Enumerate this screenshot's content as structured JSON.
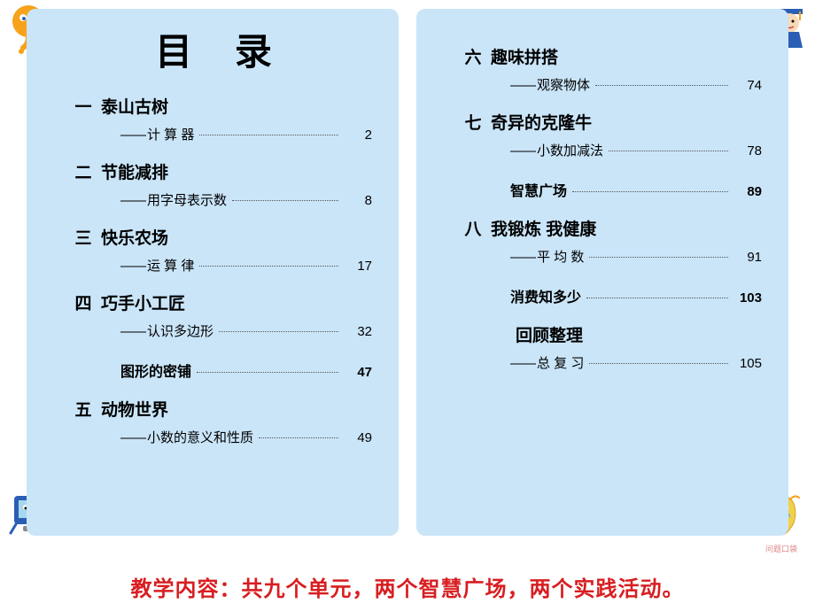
{
  "title": "目 录",
  "left_entries": [
    {
      "num": "一",
      "title": "泰山古树",
      "sub": "计 算 器",
      "page": "2"
    },
    {
      "num": "二",
      "title": "节能减排",
      "sub": "用字母表示数",
      "page": "8"
    },
    {
      "num": "三",
      "title": "快乐农场",
      "sub": "运 算 律",
      "page": "17"
    },
    {
      "num": "四",
      "title": "巧手小工匠",
      "sub": "认识多边形",
      "page": "32",
      "extra": {
        "label": "图形的密铺",
        "page": "47"
      }
    },
    {
      "num": "五",
      "title": "动物世界",
      "sub": "小数的意义和性质",
      "page": "49"
    }
  ],
  "right_entries": [
    {
      "num": "六",
      "title": "趣味拼搭",
      "sub": "观察物体",
      "page": "74"
    },
    {
      "num": "七",
      "title": "奇异的克隆牛",
      "sub": "小数加减法",
      "page": "78",
      "extra": {
        "label": "智慧广场",
        "page": "89"
      }
    },
    {
      "num": "八",
      "title": "我锻炼 我健康",
      "sub": "平 均 数",
      "page": "91",
      "extra": {
        "label": "消费知多少",
        "page": "103"
      }
    },
    {
      "num": "",
      "title": "回顾整理",
      "sub": "总 复 习",
      "page": "105",
      "indent": true
    }
  ],
  "bottom_text": "教学内容：共九个单元，两个智慧广场，两个实践活动。",
  "deco_br_label": "问题口袋",
  "colors": {
    "page_bg": "#cae5f8",
    "bottom_text": "#d81e21",
    "orange": "#f6a21b",
    "blue": "#2b5fb5",
    "yellow": "#f2d04a"
  }
}
